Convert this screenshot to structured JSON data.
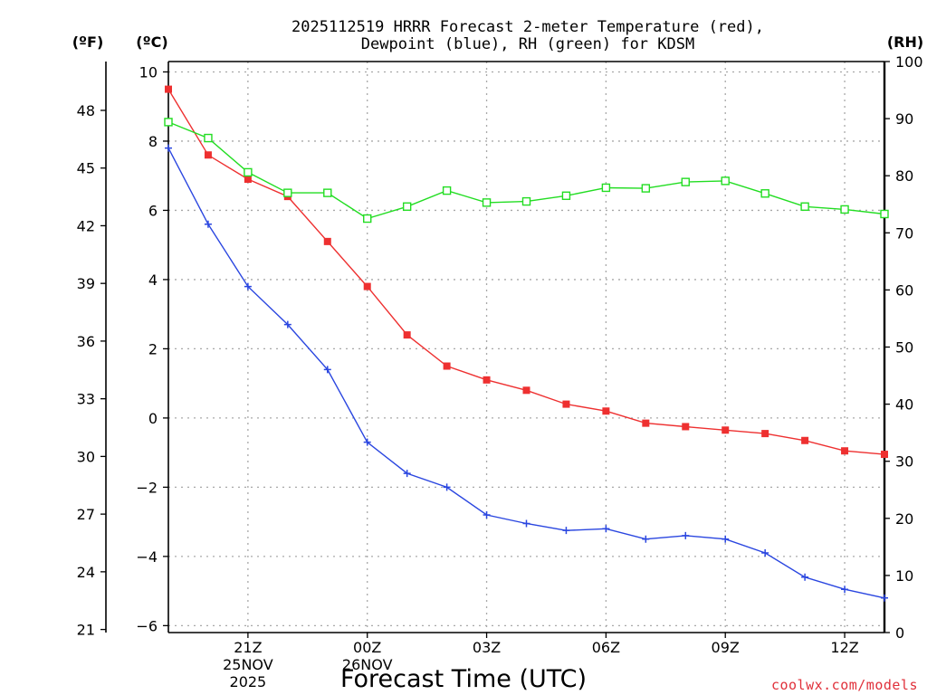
{
  "chart_data": {
    "type": "line",
    "title_line1": "2025112519 HRRR Forecast 2-meter Temperature (red),",
    "title_line2": "Dewpoint (blue), RH (green) for KDSM",
    "unit_f": "(ºF)",
    "unit_c": "(ºC)",
    "unit_rh": "(RH)",
    "xlabel": "Forecast Time (UTC)",
    "watermark": "coolwx.com/models",
    "x": [
      19,
      20,
      21,
      22,
      23,
      24,
      25,
      26,
      27,
      28,
      29,
      30,
      31,
      32,
      33,
      34,
      35,
      36,
      37
    ],
    "xlim": [
      19,
      37
    ],
    "x_ticks": [
      {
        "x": 21,
        "lines": [
          "21Z",
          "25NOV",
          "2025"
        ]
      },
      {
        "x": 24,
        "lines": [
          "00Z",
          "26NOV"
        ]
      },
      {
        "x": 27,
        "lines": [
          "03Z"
        ]
      },
      {
        "x": 30,
        "lines": [
          "06Z"
        ]
      },
      {
        "x": 33,
        "lines": [
          "09Z"
        ]
      },
      {
        "x": 36,
        "lines": [
          "12Z"
        ]
      }
    ],
    "ylim_c": [
      -6.2,
      10.3
    ],
    "yticks_c": [
      "10",
      "8",
      "6",
      "4",
      "2",
      "0",
      "−2",
      "−4",
      "−6"
    ],
    "yticks_c_values": [
      10,
      8,
      6,
      4,
      2,
      0,
      -2,
      -4,
      -6
    ],
    "yticks_f": [
      "48",
      "45",
      "42",
      "39",
      "36",
      "33",
      "30",
      "27",
      "24",
      "21"
    ],
    "yticks_f_values": [
      48,
      45,
      42,
      39,
      36,
      33,
      30,
      27,
      24,
      21
    ],
    "ylim_rh": [
      0,
      100
    ],
    "yticks_rh": [
      "100",
      "90",
      "80",
      "70",
      "60",
      "50",
      "40",
      "30",
      "20",
      "10",
      "0"
    ],
    "yticks_rh_values": [
      100,
      90,
      80,
      70,
      60,
      50,
      40,
      30,
      20,
      10,
      0
    ],
    "series": [
      {
        "name": "Temperature",
        "axis": "c",
        "color": "#ee3030",
        "marker": "filled-square",
        "values": [
          9.5,
          7.6,
          6.9,
          6.4,
          5.1,
          3.8,
          2.4,
          1.5,
          1.1,
          0.8,
          0.4,
          0.2,
          -0.15,
          -0.25,
          -0.35,
          -0.45,
          -0.65,
          -0.95,
          -1.05
        ]
      },
      {
        "name": "Dewpoint",
        "axis": "c",
        "color": "#2a46e0",
        "marker": "plus",
        "values": [
          7.8,
          5.6,
          3.8,
          2.7,
          1.4,
          -0.7,
          -1.6,
          -2.0,
          -2.8,
          -3.05,
          -3.25,
          -3.2,
          -3.5,
          -3.4,
          -3.5,
          -3.9,
          -4.6,
          -4.95,
          -5.2
        ]
      },
      {
        "name": "RH",
        "axis": "rh",
        "color": "#22dd22",
        "marker": "open-square",
        "values": [
          89.4,
          86.6,
          80.6,
          77.0,
          77.0,
          72.5,
          74.6,
          77.4,
          75.3,
          75.5,
          76.5,
          77.9,
          77.8,
          78.9,
          79.1,
          76.9,
          74.6,
          74.1,
          73.3
        ]
      }
    ]
  }
}
